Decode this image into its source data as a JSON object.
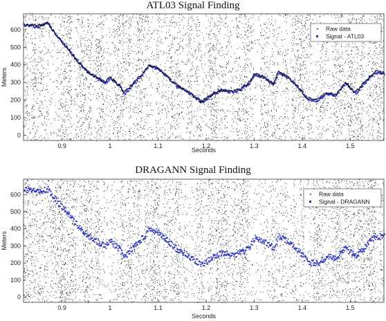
{
  "chart_data": [
    {
      "type": "scatter",
      "title": "ATL03 Signal Finding",
      "xlabel": "Seconds",
      "ylabel": "Meters",
      "xlim": [
        0.82,
        1.57
      ],
      "ylim": [
        -30,
        690
      ],
      "xticks": [
        "0.9",
        "1",
        "1.1",
        "1.2",
        "1.3",
        "1.4",
        "1.5"
      ],
      "yticks": [
        "0",
        "100",
        "200",
        "300",
        "400",
        "500",
        "600"
      ],
      "grid": false,
      "legend_placement": "top-right",
      "series": [
        {
          "name": "Raw data",
          "color": "#000000",
          "marker": "dot",
          "note_values": "dense noise 0-690 m across full time span"
        },
        {
          "name": "Signal - ATL03",
          "color": "#1f2bdc",
          "marker": "square"
        }
      ],
      "signal_x": [
        0.82,
        0.85,
        0.87,
        0.89,
        0.91,
        0.93,
        0.95,
        0.97,
        0.99,
        1.0,
        1.02,
        1.03,
        1.05,
        1.07,
        1.08,
        1.1,
        1.12,
        1.14,
        1.16,
        1.18,
        1.19,
        1.21,
        1.23,
        1.25,
        1.27,
        1.29,
        1.3,
        1.32,
        1.34,
        1.35,
        1.37,
        1.39,
        1.41,
        1.43,
        1.45,
        1.47,
        1.49,
        1.51,
        1.53,
        1.55,
        1.57
      ],
      "signal_y": [
        630,
        620,
        640,
        560,
        500,
        430,
        370,
        330,
        300,
        330,
        280,
        240,
        300,
        360,
        400,
        380,
        330,
        280,
        250,
        210,
        190,
        230,
        260,
        250,
        260,
        300,
        350,
        330,
        290,
        360,
        330,
        280,
        210,
        200,
        240,
        230,
        300,
        240,
        300,
        360,
        355
      ]
    },
    {
      "type": "scatter",
      "title": "DRAGANN Signal Finding",
      "xlabel": "Seconds",
      "ylabel": "Meters",
      "xlim": [
        0.82,
        1.57
      ],
      "ylim": [
        -30,
        690
      ],
      "xticks": [
        "0.9",
        "1",
        "1.1",
        "1.2",
        "1.3",
        "1.4",
        "1.5"
      ],
      "yticks": [
        "0",
        "100",
        "200",
        "300",
        "400",
        "500",
        "600"
      ],
      "grid": false,
      "legend_placement": "top-right",
      "series": [
        {
          "name": "Raw data",
          "color": "#000000",
          "marker": "dot"
        },
        {
          "name": "Signal - DRAGANN",
          "color": "#1f2bdc",
          "marker": "square"
        }
      ],
      "signal_x": [
        0.82,
        0.85,
        0.87,
        0.89,
        0.91,
        0.93,
        0.95,
        0.97,
        0.99,
        1.0,
        1.02,
        1.03,
        1.05,
        1.07,
        1.08,
        1.1,
        1.12,
        1.14,
        1.16,
        1.18,
        1.19,
        1.21,
        1.23,
        1.25,
        1.27,
        1.29,
        1.3,
        1.32,
        1.34,
        1.35,
        1.37,
        1.39,
        1.41,
        1.43,
        1.45,
        1.47,
        1.49,
        1.51,
        1.53,
        1.55,
        1.57
      ],
      "signal_y": [
        630,
        625,
        635,
        560,
        500,
        430,
        370,
        330,
        300,
        330,
        280,
        240,
        300,
        360,
        400,
        380,
        330,
        280,
        250,
        210,
        190,
        230,
        260,
        250,
        260,
        300,
        350,
        330,
        290,
        360,
        330,
        280,
        210,
        200,
        240,
        230,
        300,
        240,
        300,
        360,
        355
      ]
    }
  ]
}
